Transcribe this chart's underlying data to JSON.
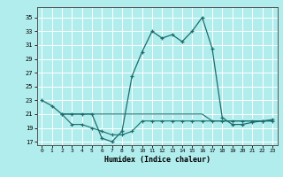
{
  "title": "",
  "xlabel": "Humidex (Indice chaleur)",
  "bg_color": "#b2eded",
  "grid_color": "#ffffff",
  "line_color": "#1a6e6e",
  "xlim": [
    -0.5,
    23.5
  ],
  "ylim": [
    16.5,
    36.5
  ],
  "xticks": [
    0,
    1,
    2,
    3,
    4,
    5,
    6,
    7,
    8,
    9,
    10,
    11,
    12,
    13,
    14,
    15,
    16,
    17,
    18,
    19,
    20,
    21,
    22,
    23
  ],
  "yticks": [
    17,
    19,
    21,
    23,
    25,
    27,
    29,
    31,
    33,
    35
  ],
  "line1_x": [
    0,
    1,
    2,
    3,
    4,
    5,
    6,
    7,
    8,
    9,
    10,
    11,
    12,
    13,
    14,
    15,
    16,
    17,
    18,
    19,
    20,
    21,
    22,
    23
  ],
  "line1_y": [
    23,
    22.2,
    21,
    21,
    21,
    21,
    17.5,
    17.0,
    18.5,
    26.5,
    30.0,
    33,
    32,
    32.5,
    31.5,
    33,
    35,
    30.5,
    20.5,
    19.5,
    19.5,
    19.8,
    20.0,
    20.2
  ],
  "line2_x": [
    2,
    3,
    4,
    5,
    6,
    7,
    8,
    9,
    10,
    11,
    12,
    13,
    14,
    15,
    16,
    17,
    18,
    19,
    20,
    21,
    22,
    23
  ],
  "line2_y": [
    21,
    19.5,
    19.5,
    19,
    18.5,
    18,
    18,
    18.5,
    20,
    20,
    20,
    20,
    20,
    20,
    20,
    20,
    20,
    20,
    20,
    20,
    20,
    20
  ],
  "line3_x": [
    2,
    3,
    4,
    5,
    6,
    7,
    8,
    9,
    10,
    11,
    12,
    13,
    14,
    15,
    16,
    17,
    18,
    19,
    20,
    21,
    22,
    23
  ],
  "line3_y": [
    21,
    21,
    21,
    21,
    21,
    21,
    21,
    21,
    21,
    21,
    21,
    21,
    21,
    21,
    21,
    20,
    20,
    20,
    20,
    20,
    20,
    20
  ]
}
